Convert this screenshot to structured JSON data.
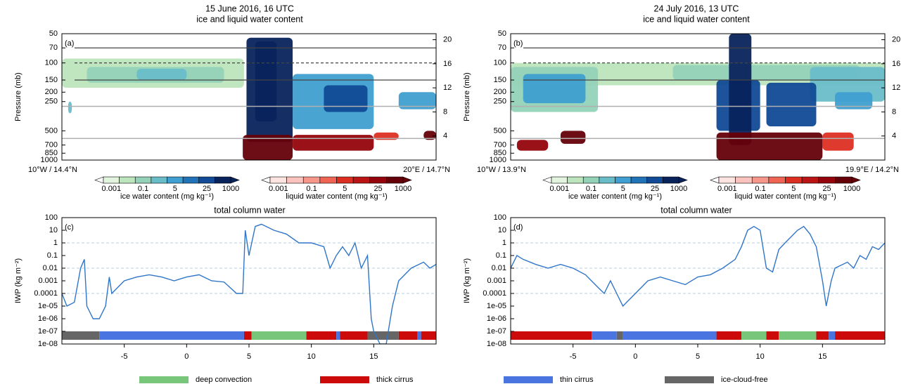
{
  "chart_data": [
    {
      "type": "contour",
      "title": "15 June 2016, 16 UTC",
      "subtitle": "ice and liquid water content",
      "panel_label": "(a)",
      "ylabel": "Pressure (mb)",
      "log_y": true,
      "ylim": [
        1000,
        50
      ],
      "yticks": [
        50,
        70,
        100,
        150,
        200,
        250,
        500,
        700,
        850,
        1000
      ],
      "y2lim": [
        0,
        21
      ],
      "y2ticks": [
        4,
        8,
        12,
        16,
        20
      ],
      "xlim": [
        -10,
        20
      ],
      "x_start_label": "10°W / 14.4°N",
      "x_end_label": "20°E / 14.7°N",
      "hlines": [
        {
          "value": 70,
          "style": "solid"
        },
        {
          "value": 100,
          "style": "dashed"
        },
        {
          "value": 150,
          "style": "solid"
        },
        {
          "value": 280,
          "style": "gray"
        },
        {
          "value": 600,
          "style": "gray"
        }
      ],
      "regions": [
        {
          "kind": "ice",
          "x0": -10,
          "x1": 4.6,
          "p0": 90,
          "p1": 180,
          "value": 0.01
        },
        {
          "kind": "ice",
          "x0": -8,
          "x1": 3,
          "p0": 110,
          "p1": 160,
          "value": 0.1
        },
        {
          "kind": "ice",
          "x0": -4,
          "x1": 0,
          "p0": 115,
          "p1": 150,
          "value": 1
        },
        {
          "kind": "ice",
          "x0": -9.5,
          "x1": -9.2,
          "p0": 250,
          "p1": 330,
          "value": 1
        },
        {
          "kind": "ice",
          "x0": 8.5,
          "x1": 15,
          "p0": 130,
          "p1": 480,
          "value": 5
        },
        {
          "kind": "ice",
          "x0": 11,
          "x1": 14.5,
          "p0": 170,
          "p1": 320,
          "value": 25
        },
        {
          "kind": "ice",
          "x0": 17,
          "x1": 20,
          "p0": 200,
          "p1": 300,
          "value": 5
        },
        {
          "kind": "ice",
          "x0": 4.8,
          "x1": 8.5,
          "p0": 55,
          "p1": 650,
          "value": 100
        },
        {
          "kind": "ice",
          "x0": 5.5,
          "x1": 7.2,
          "p0": 60,
          "p1": 400,
          "value": 1000
        },
        {
          "kind": "liquid",
          "x0": 4.5,
          "x1": 8.5,
          "p0": 550,
          "p1": 1000,
          "value": 1000
        },
        {
          "kind": "liquid",
          "x0": 8.5,
          "x1": 15,
          "p0": 550,
          "p1": 800,
          "value": 25
        },
        {
          "kind": "liquid",
          "x0": 15,
          "x1": 17,
          "p0": 520,
          "p1": 620,
          "value": 5
        },
        {
          "kind": "liquid",
          "x0": 19,
          "x1": 20,
          "p0": 500,
          "p1": 620,
          "value": 100
        }
      ]
    },
    {
      "type": "contour",
      "title": "24 July 2016, 13 UTC",
      "subtitle": "ice and liquid water content",
      "panel_label": "(b)",
      "ylabel": "Pressure (mb)",
      "log_y": true,
      "ylim": [
        1000,
        50
      ],
      "yticks": [
        50,
        70,
        100,
        150,
        200,
        250,
        500,
        700,
        850,
        1000
      ],
      "y2lim": [
        0,
        21
      ],
      "y2ticks": [
        4,
        8,
        12,
        16,
        20
      ],
      "xlim": [
        -10,
        20
      ],
      "x_start_label": "10°W / 13.9°N",
      "x_end_label": "19.9°E / 14.2°N",
      "hlines": [
        {
          "value": 70,
          "style": "solid"
        },
        {
          "value": 100,
          "style": "dashed"
        },
        {
          "value": 150,
          "style": "solid"
        },
        {
          "value": 280,
          "style": "gray"
        },
        {
          "value": 600,
          "style": "gray"
        }
      ],
      "regions": [
        {
          "kind": "ice",
          "x0": -10,
          "x1": 20,
          "p0": 100,
          "p1": 170,
          "value": 0.01
        },
        {
          "kind": "ice",
          "x0": -10,
          "x1": -3,
          "p0": 110,
          "p1": 320,
          "value": 0.1
        },
        {
          "kind": "ice",
          "x0": -9,
          "x1": -4,
          "p0": 130,
          "p1": 260,
          "value": 5
        },
        {
          "kind": "ice",
          "x0": 3,
          "x1": 18,
          "p0": 105,
          "p1": 150,
          "value": 0.1
        },
        {
          "kind": "ice",
          "x0": 14,
          "x1": 20,
          "p0": 110,
          "p1": 250,
          "value": 1
        },
        {
          "kind": "ice",
          "x0": 16,
          "x1": 19,
          "p0": 200,
          "p1": 300,
          "value": 5
        },
        {
          "kind": "ice",
          "x0": 6.5,
          "x1": 10,
          "p0": 150,
          "p1": 500,
          "value": 25
        },
        {
          "kind": "ice",
          "x0": 10.5,
          "x1": 14.5,
          "p0": 160,
          "p1": 450,
          "value": 25
        },
        {
          "kind": "ice",
          "x0": 7.5,
          "x1": 9.3,
          "p0": 50,
          "p1": 700,
          "value": 1000
        },
        {
          "kind": "liquid",
          "x0": -9.5,
          "x1": -7,
          "p0": 620,
          "p1": 800,
          "value": 25
        },
        {
          "kind": "liquid",
          "x0": -6,
          "x1": -4,
          "p0": 500,
          "p1": 680,
          "value": 100
        },
        {
          "kind": "liquid",
          "x0": 6.5,
          "x1": 15,
          "p0": 520,
          "p1": 1000,
          "value": 100
        },
        {
          "kind": "liquid",
          "x0": 15,
          "x1": 17.5,
          "p0": 520,
          "p1": 800,
          "value": 5
        }
      ]
    },
    {
      "type": "line",
      "title": "total column water",
      "panel_label": "(c)",
      "ylabel": "IWP (kg m⁻²)",
      "log_y": true,
      "ylim": [
        1e-08,
        100
      ],
      "yticks": [
        100,
        10,
        1,
        0.1,
        0.01,
        0.001,
        0.0001,
        {
          "value": 1e-05,
          "label": "1e-05"
        },
        {
          "value": 1e-06,
          "label": "1e-06"
        },
        {
          "value": 1e-07,
          "label": "1e-07"
        },
        {
          "value": 1e-08,
          "label": "1e-08"
        }
      ],
      "grid_values": [
        1,
        0.01,
        0.0001
      ],
      "xlim": [
        -10,
        20
      ],
      "xticks": [
        -5,
        0,
        5,
        10,
        15
      ],
      "color": "#2f75c8",
      "x": [
        -10,
        -9.6,
        -9,
        -8.5,
        -8.2,
        -8,
        -7.5,
        -7,
        -6.5,
        -6.2,
        -6,
        -5,
        -4,
        -3,
        -2,
        -1,
        0,
        1,
        2,
        3,
        4,
        4.5,
        4.7,
        5,
        5.5,
        6,
        7,
        8,
        9,
        10,
        11,
        11.5,
        12,
        12.5,
        13,
        13.5,
        14,
        14.5,
        14.8,
        15,
        15.5,
        16,
        16.5,
        17,
        18,
        19,
        19.5,
        20
      ],
      "values": [
        0.0001,
        1e-05,
        2e-05,
        0.01,
        0.05,
        1e-05,
        1e-06,
        1e-06,
        1e-05,
        0.002,
        0.0001,
        0.001,
        0.002,
        0.003,
        0.002,
        0.001,
        0.002,
        0.003,
        0.001,
        0.0008,
        0.0001,
        0.0001,
        10,
        0.1,
        20,
        30,
        10,
        5,
        1,
        1,
        0.5,
        0.01,
        0.1,
        0.5,
        0.1,
        1,
        0.01,
        0.1,
        1e-06,
        1e-07,
        1e-08,
        1e-08,
        1e-05,
        0.001,
        0.01,
        0.03,
        0.01,
        0.02
      ],
      "class_segments": [
        {
          "x0": -10,
          "x1": -7,
          "class": "ice-cloud-free"
        },
        {
          "x0": -7,
          "x1": 4.6,
          "class": "thin cirrus"
        },
        {
          "x0": 4.6,
          "x1": 5.2,
          "class": "thick cirrus"
        },
        {
          "x0": 5.2,
          "x1": 9.6,
          "class": "deep convection"
        },
        {
          "x0": 9.6,
          "x1": 12,
          "class": "thick cirrus"
        },
        {
          "x0": 12,
          "x1": 12.3,
          "class": "thin cirrus"
        },
        {
          "x0": 12.3,
          "x1": 14.5,
          "class": "thick cirrus"
        },
        {
          "x0": 14.5,
          "x1": 17,
          "class": "ice-cloud-free"
        },
        {
          "x0": 17,
          "x1": 18.5,
          "class": "thick cirrus"
        },
        {
          "x0": 18.5,
          "x1": 18.8,
          "class": "thin cirrus"
        },
        {
          "x0": 18.8,
          "x1": 20,
          "class": "thick cirrus"
        }
      ]
    },
    {
      "type": "line",
      "title": "total column water",
      "panel_label": "(d)",
      "ylabel": "IWP (kg m⁻²)",
      "log_y": true,
      "ylim": [
        1e-08,
        100
      ],
      "yticks": [
        100,
        10,
        1,
        0.1,
        0.01,
        0.001,
        0.0001,
        {
          "value": 1e-05,
          "label": "1e-05"
        },
        {
          "value": 1e-06,
          "label": "1e-06"
        },
        {
          "value": 1e-07,
          "label": "1e-07"
        },
        {
          "value": 1e-08,
          "label": "1e-08"
        }
      ],
      "grid_values": [
        1,
        0.01,
        0.0001
      ],
      "xlim": [
        -10,
        20
      ],
      "xticks": [
        -5,
        0,
        5,
        10,
        15
      ],
      "color": "#2f75c8",
      "x": [
        -10,
        -9.5,
        -9,
        -8,
        -7,
        -6,
        -5,
        -4,
        -3,
        -2.5,
        -2,
        -1.5,
        -1,
        0,
        1,
        2,
        3,
        4,
        5,
        6,
        7,
        8,
        8.5,
        9,
        9.5,
        10,
        10.5,
        11,
        11.5,
        12,
        13,
        13.5,
        14,
        14.5,
        15,
        15.3,
        15.7,
        16,
        17,
        17.5,
        18,
        18.5,
        19,
        19.5,
        20
      ],
      "values": [
        0.01,
        0.1,
        0.05,
        0.02,
        0.01,
        0.02,
        0.01,
        0.003,
        0.0003,
        0.0001,
        0.001,
        0.0001,
        1e-05,
        0.0001,
        0.001,
        0.002,
        0.001,
        0.0005,
        0.002,
        0.003,
        0.01,
        0.05,
        0.5,
        10,
        20,
        10,
        0.01,
        0.005,
        0.3,
        1,
        10,
        20,
        5,
        0.5,
        0.001,
        1e-05,
        0.001,
        0.01,
        0.03,
        0.01,
        0.1,
        0.05,
        0.5,
        0.3,
        1
      ],
      "class_segments": [
        {
          "x0": -10,
          "x1": -3.5,
          "class": "thick cirrus"
        },
        {
          "x0": -3.5,
          "x1": -1.5,
          "class": "thin cirrus"
        },
        {
          "x0": -1.5,
          "x1": -1,
          "class": "ice-cloud-free"
        },
        {
          "x0": -1,
          "x1": 6.5,
          "class": "thin cirrus"
        },
        {
          "x0": 6.5,
          "x1": 8.5,
          "class": "thick cirrus"
        },
        {
          "x0": 8.5,
          "x1": 10.5,
          "class": "deep convection"
        },
        {
          "x0": 10.5,
          "x1": 11.5,
          "class": "thick cirrus"
        },
        {
          "x0": 11.5,
          "x1": 14.5,
          "class": "deep convection"
        },
        {
          "x0": 14.5,
          "x1": 15.5,
          "class": "thick cirrus"
        },
        {
          "x0": 15.5,
          "x1": 16,
          "class": "thin cirrus"
        },
        {
          "x0": 16,
          "x1": 20,
          "class": "thick cirrus"
        }
      ]
    }
  ],
  "colorbars": {
    "ice": {
      "label": "ice water content (mg kg⁻¹)",
      "levels": [
        0.001,
        0.01,
        0.1,
        1,
        5,
        10,
        25,
        100,
        1000
      ],
      "ticks": [
        0.001,
        0.1,
        5,
        25,
        1000
      ],
      "colors": [
        "#e3f4de",
        "#bde5bd",
        "#94d2b8",
        "#69bdc9",
        "#3f9fd0",
        "#2173b8",
        "#114a96",
        "#08235c"
      ]
    },
    "liquid": {
      "label": "liquid water content (mg kg⁻¹)",
      "levels": [
        0.001,
        0.01,
        0.1,
        1,
        5,
        10,
        25,
        100,
        1000
      ],
      "ticks": [
        0.001,
        0.1,
        5,
        25,
        1000
      ],
      "colors": [
        "#fde4e1",
        "#fbc3bd",
        "#f7978c",
        "#ef6453",
        "#dc2f22",
        "#bb1414",
        "#95040c",
        "#650008"
      ]
    }
  },
  "legend": [
    {
      "name": "deep convection",
      "color": "#78c679"
    },
    {
      "name": "thick cirrus",
      "color": "#cc0a0a"
    },
    {
      "name": "thin cirrus",
      "color": "#4a74e0"
    },
    {
      "name": "ice-cloud-free",
      "color": "#666666"
    }
  ]
}
